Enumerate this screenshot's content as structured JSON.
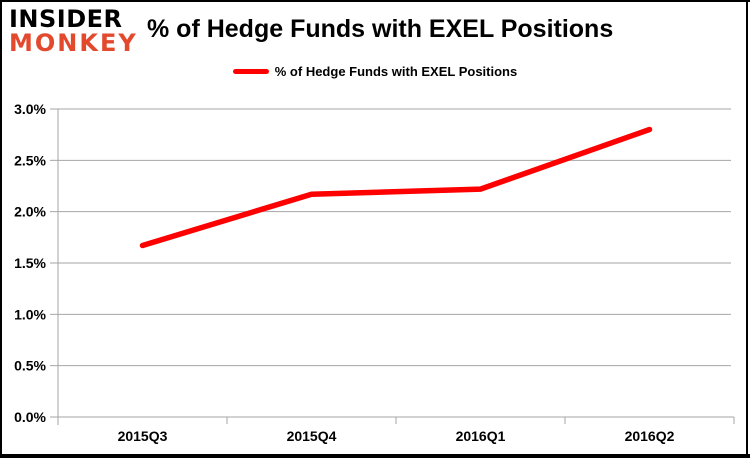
{
  "logo": {
    "line1": "INSIDER",
    "line2": "MONKEY"
  },
  "title": "% of Hedge Funds with EXEL Positions",
  "legend": {
    "label": "% of Hedge Funds with EXEL Positions"
  },
  "chart_data": {
    "type": "line",
    "title": "% of Hedge Funds with EXEL Positions",
    "categories": [
      "2015Q3",
      "2015Q4",
      "2016Q1",
      "2016Q2"
    ],
    "series": [
      {
        "name": "% of Hedge Funds with EXEL Positions",
        "color": "#FF0000",
        "values": [
          1.67,
          2.17,
          2.22,
          2.8
        ]
      }
    ],
    "xlabel": "",
    "ylabel": "",
    "ylim": [
      0.0,
      3.0
    ],
    "ytick_step": 0.5,
    "ytick_labels": [
      "0.0%",
      "0.5%",
      "1.0%",
      "1.5%",
      "2.0%",
      "2.5%",
      "3.0%"
    ],
    "grid": true,
    "legend_position": "top-center"
  },
  "colors": {
    "accent_red": "#FF0000",
    "logo_text": "#000000",
    "logo_accent": "#E2492D",
    "grid": "#A6A6A6",
    "axis": "#A6A6A6",
    "text": "#000000",
    "frame": "#000000",
    "background": "#FFFFFF"
  }
}
